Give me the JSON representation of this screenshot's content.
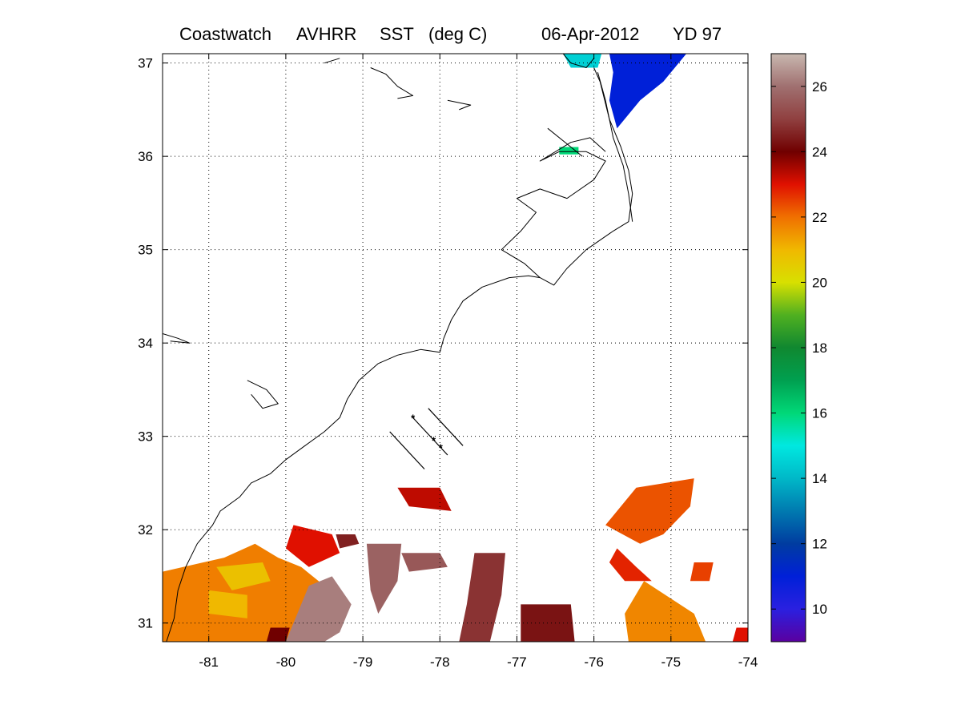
{
  "title": {
    "source": "Coastwatch",
    "sensor": "AVHRR",
    "product": "SST",
    "units": "(deg C)",
    "date": "06-Apr-2012",
    "yearday": "YD 97"
  },
  "map": {
    "lon_range": [
      -81.6,
      -74
    ],
    "lat_range": [
      30.8,
      37.1
    ],
    "lon_ticks": [
      -81,
      -80,
      -79,
      -78,
      -77,
      -76,
      -75,
      -74
    ],
    "lat_ticks": [
      31,
      32,
      33,
      34,
      35,
      36,
      37
    ],
    "lon_tick_labels": [
      "-81",
      "-80",
      "-79",
      "-78",
      "-77",
      "-76",
      "-75",
      "-74"
    ],
    "lat_tick_labels": [
      "31",
      "32",
      "33",
      "34",
      "35",
      "36",
      "37"
    ],
    "grid": "dotted"
  },
  "colorbar": {
    "range": [
      9,
      27
    ],
    "tick_values": [
      10,
      12,
      14,
      16,
      18,
      20,
      22,
      24,
      26
    ],
    "tick_labels": [
      "10",
      "12",
      "14",
      "16",
      "18",
      "20",
      "22",
      "24",
      "26"
    ],
    "stops": [
      {
        "v": 9.0,
        "c": "#5a00a0"
      },
      {
        "v": 10.0,
        "c": "#2a20e0"
      },
      {
        "v": 11.0,
        "c": "#0020d8"
      },
      {
        "v": 12.0,
        "c": "#003ca0"
      },
      {
        "v": 13.0,
        "c": "#007ab0"
      },
      {
        "v": 14.0,
        "c": "#00b8c8"
      },
      {
        "v": 15.0,
        "c": "#00e8e0"
      },
      {
        "v": 16.0,
        "c": "#00d878"
      },
      {
        "v": 17.0,
        "c": "#00a050"
      },
      {
        "v": 18.0,
        "c": "#108830"
      },
      {
        "v": 19.0,
        "c": "#50b020"
      },
      {
        "v": 20.0,
        "c": "#d8e000"
      },
      {
        "v": 21.0,
        "c": "#f0b800"
      },
      {
        "v": 22.0,
        "c": "#f07000"
      },
      {
        "v": 23.0,
        "c": "#e01000"
      },
      {
        "v": 24.0,
        "c": "#700000"
      },
      {
        "v": 25.0,
        "c": "#904040"
      },
      {
        "v": 26.0,
        "c": "#a07070"
      },
      {
        "v": 27.0,
        "c": "#c8b8b0"
      }
    ]
  },
  "sst_patches": [
    {
      "t": 11,
      "pts": [
        [
          -75.8,
          37.1
        ],
        [
          -74.8,
          37.1
        ],
        [
          -75.1,
          36.8
        ],
        [
          -75.4,
          36.6
        ],
        [
          -75.7,
          36.3
        ],
        [
          -75.8,
          36.6
        ],
        [
          -75.75,
          36.9
        ]
      ]
    },
    {
      "t": 14.5,
      "pts": [
        [
          -76.4,
          37.1
        ],
        [
          -75.9,
          37.1
        ],
        [
          -75.95,
          36.95
        ],
        [
          -76.3,
          36.95
        ]
      ]
    },
    {
      "t": 16,
      "pts": [
        [
          -76.45,
          36.1
        ],
        [
          -76.2,
          36.1
        ],
        [
          -76.2,
          36.02
        ],
        [
          -76.45,
          36.02
        ]
      ]
    },
    {
      "t": 21.8,
      "pts": [
        [
          -81.6,
          31.55
        ],
        [
          -80.8,
          31.7
        ],
        [
          -80.4,
          31.85
        ],
        [
          -80.1,
          31.7
        ],
        [
          -79.8,
          31.6
        ],
        [
          -79.5,
          31.4
        ],
        [
          -79.8,
          31.0
        ],
        [
          -80.0,
          30.8
        ],
        [
          -81.6,
          30.8
        ]
      ]
    },
    {
      "t": 20.8,
      "pts": [
        [
          -80.9,
          31.6
        ],
        [
          -80.3,
          31.65
        ],
        [
          -80.2,
          31.45
        ],
        [
          -80.7,
          31.35
        ]
      ]
    },
    {
      "t": 21,
      "pts": [
        [
          -81.0,
          31.35
        ],
        [
          -80.5,
          31.3
        ],
        [
          -80.5,
          31.05
        ],
        [
          -81.0,
          31.1
        ]
      ]
    },
    {
      "t": 23,
      "pts": [
        [
          -79.9,
          32.05
        ],
        [
          -79.4,
          31.95
        ],
        [
          -79.3,
          31.75
        ],
        [
          -79.7,
          31.6
        ],
        [
          -80.0,
          31.8
        ]
      ]
    },
    {
      "t": 24.5,
      "pts": [
        [
          -79.35,
          31.95
        ],
        [
          -79.1,
          31.95
        ],
        [
          -79.05,
          31.85
        ],
        [
          -79.3,
          31.8
        ]
      ]
    },
    {
      "t": 26.2,
      "pts": [
        [
          -79.7,
          31.4
        ],
        [
          -79.4,
          31.5
        ],
        [
          -79.15,
          31.2
        ],
        [
          -79.3,
          30.9
        ],
        [
          -79.5,
          30.8
        ],
        [
          -80.0,
          30.8
        ]
      ]
    },
    {
      "t": 25.7,
      "pts": [
        [
          -78.95,
          31.85
        ],
        [
          -78.5,
          31.85
        ],
        [
          -78.55,
          31.45
        ],
        [
          -78.8,
          31.1
        ],
        [
          -78.9,
          31.35
        ]
      ]
    },
    {
      "t": 25.5,
      "pts": [
        [
          -78.5,
          31.75
        ],
        [
          -78.0,
          31.75
        ],
        [
          -77.9,
          31.6
        ],
        [
          -78.4,
          31.55
        ]
      ]
    },
    {
      "t": 24.8,
      "pts": [
        [
          -77.55,
          31.75
        ],
        [
          -77.15,
          31.75
        ],
        [
          -77.2,
          31.3
        ],
        [
          -77.35,
          30.8
        ],
        [
          -77.75,
          30.8
        ],
        [
          -77.65,
          31.2
        ]
      ]
    },
    {
      "t": 24.3,
      "pts": [
        [
          -76.95,
          31.2
        ],
        [
          -76.3,
          31.2
        ],
        [
          -76.25,
          30.8
        ],
        [
          -76.95,
          30.8
        ]
      ]
    },
    {
      "t": 23.3,
      "pts": [
        [
          -78.55,
          32.45
        ],
        [
          -78.0,
          32.45
        ],
        [
          -77.85,
          32.2
        ],
        [
          -78.4,
          32.25
        ]
      ]
    },
    {
      "t": 22.3,
      "pts": [
        [
          -75.45,
          32.45
        ],
        [
          -74.7,
          32.55
        ],
        [
          -74.75,
          32.25
        ],
        [
          -75.1,
          31.95
        ],
        [
          -75.4,
          31.85
        ],
        [
          -75.85,
          32.05
        ]
      ]
    },
    {
      "t": 22.8,
      "pts": [
        [
          -75.7,
          31.8
        ],
        [
          -75.45,
          31.6
        ],
        [
          -75.25,
          31.45
        ],
        [
          -75.6,
          31.45
        ],
        [
          -75.8,
          31.65
        ]
      ]
    },
    {
      "t": 21.7,
      "pts": [
        [
          -75.35,
          31.45
        ],
        [
          -74.7,
          31.1
        ],
        [
          -74.55,
          30.8
        ],
        [
          -75.55,
          30.8
        ],
        [
          -75.6,
          31.1
        ]
      ]
    },
    {
      "t": 22.5,
      "pts": [
        [
          -74.7,
          31.65
        ],
        [
          -74.45,
          31.65
        ],
        [
          -74.5,
          31.45
        ],
        [
          -74.75,
          31.45
        ]
      ]
    },
    {
      "t": 23,
      "pts": [
        [
          -74.15,
          30.95
        ],
        [
          -74.0,
          30.95
        ],
        [
          -74.0,
          30.8
        ],
        [
          -74.2,
          30.8
        ]
      ]
    },
    {
      "t": 24,
      "pts": [
        [
          -80.2,
          30.95
        ],
        [
          -79.95,
          30.95
        ],
        [
          -80.0,
          30.8
        ],
        [
          -80.25,
          30.8
        ]
      ]
    }
  ],
  "coastlines": [
    [
      [
        -81.55,
        30.8
      ],
      [
        -81.45,
        31.05
      ],
      [
        -81.4,
        31.35
      ],
      [
        -81.3,
        31.6
      ],
      [
        -81.15,
        31.85
      ],
      [
        -80.95,
        32.05
      ],
      [
        -80.85,
        32.2
      ],
      [
        -80.6,
        32.35
      ],
      [
        -80.45,
        32.5
      ],
      [
        -80.2,
        32.6
      ],
      [
        -80.0,
        32.75
      ],
      [
        -79.75,
        32.9
      ],
      [
        -79.5,
        33.05
      ],
      [
        -79.3,
        33.2
      ],
      [
        -79.2,
        33.4
      ],
      [
        -79.05,
        33.6
      ],
      [
        -78.8,
        33.78
      ],
      [
        -78.55,
        33.87
      ],
      [
        -78.25,
        33.93
      ],
      [
        -78.0,
        33.9
      ],
      [
        -77.95,
        34.05
      ],
      [
        -77.85,
        34.25
      ],
      [
        -77.7,
        34.45
      ],
      [
        -77.45,
        34.6
      ],
      [
        -77.1,
        34.7
      ],
      [
        -76.85,
        34.72
      ],
      [
        -76.7,
        34.7
      ],
      [
        -76.52,
        34.62
      ],
      [
        -76.35,
        34.8
      ],
      [
        -76.1,
        35.0
      ],
      [
        -75.75,
        35.2
      ],
      [
        -75.55,
        35.3
      ],
      [
        -75.5,
        35.6
      ],
      [
        -75.55,
        35.85
      ],
      [
        -75.65,
        36.1
      ],
      [
        -75.8,
        36.4
      ],
      [
        -75.92,
        36.8
      ],
      [
        -76.0,
        36.95
      ]
    ],
    [
      [
        -75.5,
        35.3
      ],
      [
        -75.55,
        35.6
      ],
      [
        -75.62,
        35.9
      ],
      [
        -75.75,
        36.2
      ],
      [
        -75.85,
        36.6
      ],
      [
        -75.95,
        36.9
      ]
    ],
    [
      [
        -76.7,
        34.7
      ],
      [
        -76.9,
        34.85
      ],
      [
        -77.2,
        35.0
      ],
      [
        -76.95,
        35.2
      ],
      [
        -76.75,
        35.4
      ],
      [
        -77.0,
        35.55
      ],
      [
        -76.7,
        35.65
      ],
      [
        -76.35,
        35.55
      ],
      [
        -76.0,
        35.75
      ],
      [
        -75.85,
        35.95
      ],
      [
        -76.1,
        36.05
      ],
      [
        -76.45,
        36.05
      ],
      [
        -76.7,
        35.95
      ],
      [
        -76.3,
        36.15
      ],
      [
        -76.05,
        36.2
      ],
      [
        -75.85,
        36.05
      ]
    ],
    [
      [
        -76.6,
        36.3
      ],
      [
        -76.3,
        36.1
      ],
      [
        -76.15,
        36.0
      ]
    ],
    [
      [
        -76.4,
        37.1
      ],
      [
        -76.3,
        37.0
      ],
      [
        -76.1,
        36.95
      ],
      [
        -76.0,
        37.05
      ]
    ],
    [
      [
        -78.9,
        36.95
      ],
      [
        -78.7,
        36.88
      ],
      [
        -78.55,
        36.75
      ],
      [
        -78.35,
        36.65
      ],
      [
        -78.55,
        36.62
      ]
    ],
    [
      [
        -77.9,
        36.6
      ],
      [
        -77.6,
        36.55
      ],
      [
        -77.75,
        36.5
      ]
    ],
    [
      [
        -81.6,
        34.1
      ],
      [
        -81.4,
        34.05
      ],
      [
        -81.25,
        34.0
      ],
      [
        -81.5,
        34.02
      ]
    ],
    [
      [
        -80.5,
        33.6
      ],
      [
        -80.25,
        33.5
      ],
      [
        -80.1,
        33.35
      ],
      [
        -80.3,
        33.3
      ],
      [
        -80.45,
        33.45
      ]
    ],
    [
      [
        -79.3,
        37.05
      ],
      [
        -79.5,
        37.0
      ]
    ]
  ],
  "transects": [
    {
      "pts": [
        [
          -78.65,
          33.05
        ],
        [
          -78.2,
          32.65
        ]
      ],
      "markers": false
    },
    {
      "pts": [
        [
          -78.35,
          33.2
        ],
        [
          -77.9,
          32.8
        ]
      ],
      "markers": true
    },
    {
      "pts": [
        [
          -78.15,
          33.3
        ],
        [
          -77.7,
          32.9
        ]
      ],
      "markers": false
    }
  ]
}
